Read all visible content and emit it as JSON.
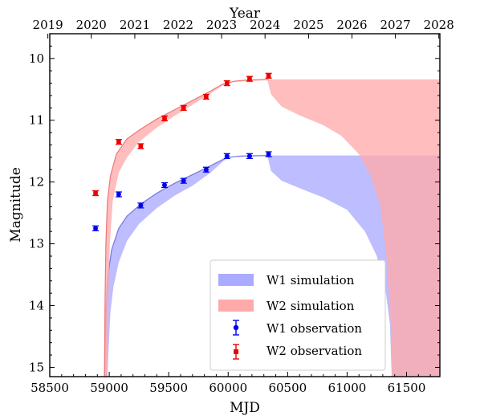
{
  "chart_data": {
    "type": "scatter",
    "xlabel": "MJD",
    "x2label": "Year",
    "ylabel": "Magnitude",
    "xlim": [
      58500,
      61780
    ],
    "ylim": [
      15.15,
      9.6
    ],
    "y_inverted": true,
    "x_ticks": [
      58500,
      59000,
      59500,
      60000,
      60500,
      61000,
      61500
    ],
    "y_ticks": [
      10,
      11,
      12,
      13,
      14,
      15
    ],
    "year_ticks": [
      {
        "label": "2019",
        "mjd": 58484
      },
      {
        "label": "2020",
        "mjd": 58849
      },
      {
        "label": "2021",
        "mjd": 59215
      },
      {
        "label": "2022",
        "mjd": 59580
      },
      {
        "label": "2023",
        "mjd": 59945
      },
      {
        "label": "2024",
        "mjd": 60310
      },
      {
        "label": "2025",
        "mjd": 60676
      },
      {
        "label": "2026",
        "mjd": 61041
      },
      {
        "label": "2027",
        "mjd": 61406
      },
      {
        "label": "2028",
        "mjd": 61771
      }
    ],
    "colors": {
      "w1_obs": "#0000ee",
      "w2_obs": "#ee0000",
      "w1_fill": "#aaaaff",
      "w2_fill": "#ffaaaa",
      "w1_line": "#7777dd",
      "w2_line": "#ee7777"
    },
    "series": [
      {
        "name": "W1 observation",
        "color": "#0000ee",
        "marker": "circle",
        "x": [
          58885,
          59080,
          59265,
          59465,
          59625,
          59815,
          59990,
          60180,
          60340
        ],
        "y": [
          12.75,
          12.2,
          12.38,
          12.05,
          11.98,
          11.8,
          11.58,
          11.58,
          11.55
        ],
        "yerr": [
          0.02,
          0.02,
          0.02,
          0.02,
          0.02,
          0.02,
          0.02,
          0.02,
          0.02
        ]
      },
      {
        "name": "W2 observation",
        "color": "#ee0000",
        "marker": "square",
        "x": [
          58885,
          59080,
          59265,
          59465,
          59625,
          59815,
          59990,
          60180,
          60340
        ],
        "y": [
          12.18,
          11.35,
          11.42,
          10.97,
          10.8,
          10.62,
          10.4,
          10.33,
          10.28
        ],
        "yerr": [
          0.03,
          0.03,
          0.03,
          0.03,
          0.03,
          0.03,
          0.03,
          0.03,
          0.03
        ]
      }
    ],
    "bands": [
      {
        "name": "W1 simulation",
        "color": "#aaaaff",
        "line_color": "#7777dd",
        "rise_mid": [
          [
            58960,
            15.2
          ],
          [
            58966,
            14.6
          ],
          [
            58975,
            14.0
          ],
          [
            58990,
            13.5
          ],
          [
            59020,
            13.1
          ],
          [
            59080,
            12.75
          ],
          [
            59150,
            12.55
          ],
          [
            59270,
            12.35
          ],
          [
            59400,
            12.18
          ],
          [
            59550,
            12.02
          ],
          [
            59700,
            11.88
          ],
          [
            59850,
            11.74
          ],
          [
            59950,
            11.64
          ],
          [
            60000,
            11.6
          ],
          [
            60100,
            11.58
          ],
          [
            60340,
            11.57
          ]
        ],
        "rise_lower": [
          [
            58985,
            15.2
          ],
          [
            58995,
            14.7
          ],
          [
            59010,
            14.1
          ],
          [
            59035,
            13.7
          ],
          [
            59080,
            13.3
          ],
          [
            59150,
            12.95
          ],
          [
            59250,
            12.68
          ],
          [
            59400,
            12.42
          ],
          [
            59550,
            12.22
          ],
          [
            59700,
            12.06
          ],
          [
            59850,
            11.85
          ],
          [
            59950,
            11.68
          ],
          [
            60000,
            11.6
          ],
          [
            60340,
            11.58
          ]
        ],
        "decay_inner": [
          [
            60330,
            11.58
          ],
          [
            60360,
            11.82
          ],
          [
            60450,
            11.98
          ],
          [
            60600,
            12.1
          ],
          [
            60800,
            12.25
          ],
          [
            61000,
            12.45
          ],
          [
            61150,
            12.8
          ],
          [
            61250,
            13.2
          ],
          [
            61320,
            13.7
          ],
          [
            61360,
            14.3
          ],
          [
            61375,
            15.2
          ]
        ],
        "plateau_mag": 11.57,
        "plateau_end": 61780,
        "drop_mjd": 61375
      },
      {
        "name": "W2 simulation",
        "color": "#ffaaaa",
        "line_color": "#ee7777",
        "rise_mid": [
          [
            58960,
            15.2
          ],
          [
            58964,
            14.0
          ],
          [
            58972,
            13.0
          ],
          [
            58985,
            12.3
          ],
          [
            59010,
            11.9
          ],
          [
            59060,
            11.55
          ],
          [
            59150,
            11.3
          ],
          [
            59260,
            11.15
          ],
          [
            59400,
            10.98
          ],
          [
            59550,
            10.83
          ],
          [
            59700,
            10.68
          ],
          [
            59850,
            10.53
          ],
          [
            59950,
            10.42
          ],
          [
            60050,
            10.37
          ],
          [
            60150,
            10.35
          ],
          [
            60340,
            10.34
          ]
        ],
        "rise_lower": [
          [
            58985,
            15.2
          ],
          [
            58992,
            14.0
          ],
          [
            59005,
            13.0
          ],
          [
            59030,
            12.3
          ],
          [
            59080,
            11.85
          ],
          [
            59150,
            11.6
          ],
          [
            59250,
            11.35
          ],
          [
            59400,
            11.12
          ],
          [
            59550,
            10.93
          ],
          [
            59700,
            10.75
          ],
          [
            59850,
            10.57
          ],
          [
            59950,
            10.44
          ],
          [
            60050,
            10.38
          ],
          [
            60340,
            10.35
          ]
        ],
        "decay_inner": [
          [
            60330,
            10.35
          ],
          [
            60360,
            10.58
          ],
          [
            60450,
            10.78
          ],
          [
            60600,
            10.92
          ],
          [
            60800,
            11.08
          ],
          [
            60950,
            11.25
          ],
          [
            61100,
            11.55
          ],
          [
            61200,
            11.9
          ],
          [
            61280,
            12.4
          ],
          [
            61330,
            13.2
          ],
          [
            61365,
            14.2
          ],
          [
            61378,
            15.2
          ]
        ],
        "plateau_mag": 10.34,
        "plateau_end": 61780,
        "drop_mjd": 61378
      }
    ],
    "legend": {
      "location": "lower-right",
      "entries": [
        "W1 simulation",
        "W2 simulation",
        "W1 observation",
        "W2 observation"
      ]
    }
  }
}
